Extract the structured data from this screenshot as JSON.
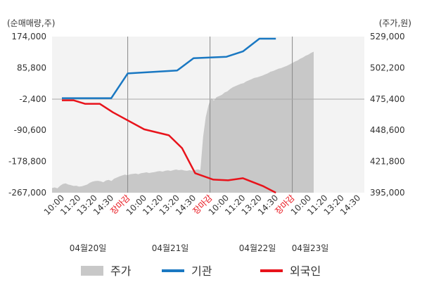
{
  "chart_data": {
    "type": "area",
    "units": {
      "left": "(순매매량,주)",
      "right": "(주가,원)"
    },
    "y_left": {
      "ticks": [
        "174,000",
        "85,800",
        "-2,400",
        "-90,600",
        "-178,800",
        "-267,000"
      ],
      "range": [
        -267000,
        174000
      ]
    },
    "y_right": {
      "ticks": [
        "529,000",
        "502,200",
        "475,400",
        "448,600",
        "421,800",
        "395,000"
      ],
      "range": [
        395000,
        529000
      ]
    },
    "x_ticks": [
      {
        "label": "10:00",
        "red": false
      },
      {
        "label": "11:20",
        "red": false
      },
      {
        "label": "13:20",
        "red": false
      },
      {
        "label": "14:30",
        "red": false
      },
      {
        "label": "장마감",
        "red": true
      },
      {
        "label": "10:00",
        "red": false
      },
      {
        "label": "11:20",
        "red": false
      },
      {
        "label": "13:20",
        "red": false
      },
      {
        "label": "14:30",
        "red": false
      },
      {
        "label": "장마감",
        "red": true
      },
      {
        "label": "10:00",
        "red": false
      },
      {
        "label": "11:20",
        "red": false
      },
      {
        "label": "13:20",
        "red": false
      },
      {
        "label": "14:30",
        "red": false
      },
      {
        "label": "장마감",
        "red": true
      },
      {
        "label": "10:00",
        "red": false
      },
      {
        "label": "11:20",
        "red": false
      },
      {
        "label": "13:20",
        "red": false
      },
      {
        "label": "14:30",
        "red": false
      }
    ],
    "days": [
      "04월20일",
      "04월21일",
      "04월22일",
      "04월23일"
    ],
    "series": [
      {
        "name": "주가",
        "axis": "right",
        "color": "#c8c8c8",
        "values": [
          399000,
          399500,
          398800,
          401000,
          402500,
          403000,
          402000,
          401500,
          400800,
          401000,
          400200,
          400500,
          401200,
          402000,
          403500,
          404500,
          405000,
          405200,
          404800,
          404000,
          405500,
          406000,
          405000,
          407000,
          408000,
          409000,
          409800,
          410500,
          410000,
          410800,
          411200,
          411500,
          410800,
          411800,
          412000,
          412500,
          411900,
          412300,
          412700,
          413200,
          413600,
          413100,
          413900,
          414200,
          413700,
          414400,
          414900,
          414300,
          414700,
          414100,
          413800,
          414300,
          413900,
          414500,
          415000,
          414400,
          443000,
          460000,
          470000,
          476000,
          474000,
          477000,
          478000,
          479000,
          481000,
          482000,
          484000,
          485500,
          486500,
          487500,
          488500,
          489000,
          490500,
          491500,
          492500,
          493500,
          494000,
          494800,
          495500,
          496500,
          497500,
          498800,
          499500,
          500500,
          501500,
          502000,
          503000,
          503800,
          505000,
          506200,
          507500,
          508500,
          510000,
          511000,
          512500,
          513500,
          515000,
          516000
        ]
      },
      {
        "name": "기관",
        "axis": "left",
        "color": "#1a78c2",
        "points": [
          [
            0,
            0
          ],
          [
            3,
            0
          ],
          [
            4,
            70000
          ],
          [
            7,
            78000
          ],
          [
            8,
            113000
          ],
          [
            10,
            117000
          ],
          [
            11,
            132000
          ],
          [
            12,
            168000
          ],
          [
            13,
            168000
          ]
        ]
      },
      {
        "name": "외국인",
        "axis": "left",
        "color": "#e8131b",
        "points": [
          [
            0,
            -6000
          ],
          [
            0.7,
            -6000
          ],
          [
            1.4,
            -16000
          ],
          [
            2.3,
            -16000
          ],
          [
            3.1,
            -40000
          ],
          [
            5,
            -88000
          ],
          [
            6.5,
            -105000
          ],
          [
            7.3,
            -141000
          ],
          [
            8.1,
            -212000
          ],
          [
            9.2,
            -230000
          ],
          [
            10.1,
            -232000
          ],
          [
            11,
            -226000
          ],
          [
            12.2,
            -248000
          ],
          [
            13,
            -267000
          ]
        ]
      }
    ],
    "legend": [
      "주가",
      "기관",
      "외국인"
    ],
    "grid": false
  }
}
